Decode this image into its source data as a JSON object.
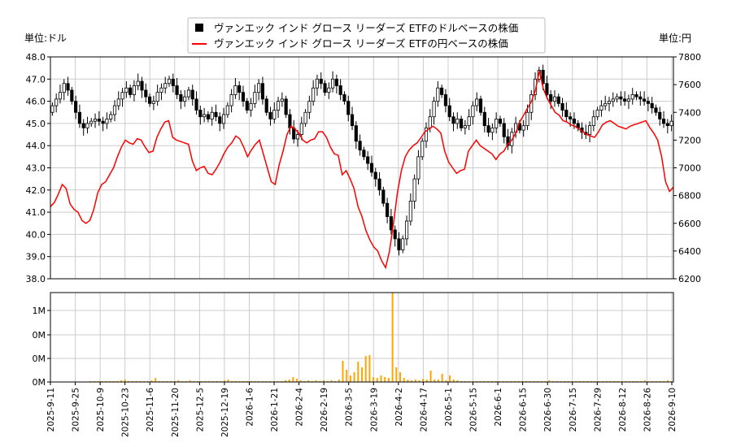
{
  "chart_data": [
    {
      "type": "candlestick",
      "legend": {
        "placement": "top-center",
        "entries": [
          {
            "label": "ヴァンエック インド グロース リーダーズ ETFのドルベースの株価",
            "color": "#000000",
            "marker": "square"
          },
          {
            "label": "ヴァンエック インド グロース リーダーズ ETFの円ベースの株価",
            "color": "#ff0000",
            "marker": "line"
          }
        ]
      },
      "left_axis": {
        "unit_label": "単位:ドル",
        "ylim": [
          38.0,
          48.0
        ],
        "ticks": [
          "38.0",
          "39.0",
          "40.0",
          "41.0",
          "42.0",
          "43.0",
          "44.0",
          "45.0",
          "46.0",
          "47.0",
          "48.0"
        ]
      },
      "right_axis": {
        "unit_label": "単位:円",
        "ylim": [
          6200,
          7800
        ],
        "ticks": [
          "6200",
          "6400",
          "6600",
          "6800",
          "7000",
          "7200",
          "7400",
          "7600",
          "7800"
        ]
      },
      "grid": true,
      "usd_series": {
        "name": "ヴァンエック インド グロース リーダーズ ETFのドルベースの株価",
        "color": "#000000",
        "close": [
          45.8,
          46.1,
          46.4,
          46.8,
          46.5,
          46.0,
          45.5,
          45.0,
          44.8,
          45.0,
          45.1,
          45.2,
          45.1,
          45.0,
          45.2,
          45.4,
          45.8,
          46.1,
          46.4,
          46.6,
          46.3,
          46.7,
          46.9,
          46.5,
          46.2,
          45.9,
          46.0,
          46.4,
          46.6,
          46.8,
          47.0,
          46.7,
          46.3,
          46.0,
          46.2,
          46.5,
          46.1,
          45.6,
          45.3,
          45.4,
          45.2,
          45.5,
          45.3,
          45.0,
          45.4,
          45.8,
          46.3,
          46.7,
          46.4,
          46.0,
          45.6,
          45.9,
          46.4,
          46.8,
          46.1,
          45.5,
          45.2,
          45.6,
          46.0,
          46.1,
          45.4,
          44.8,
          44.3,
          44.5,
          45.0,
          45.5,
          46.0,
          46.6,
          47.0,
          46.8,
          46.4,
          46.6,
          47.0,
          46.7,
          46.3,
          46.0,
          45.4,
          44.9,
          44.2,
          43.8,
          43.5,
          43.2,
          42.8,
          42.5,
          42.0,
          41.4,
          40.8,
          40.2,
          39.8,
          39.3,
          39.8,
          40.6,
          41.5,
          42.5,
          43.5,
          44.2,
          44.8,
          45.3,
          46.0,
          46.6,
          46.3,
          45.8,
          45.3,
          45.0,
          45.2,
          44.8,
          44.9,
          45.3,
          45.8,
          46.1,
          45.5,
          44.9,
          44.6,
          44.8,
          45.2,
          45.0,
          44.4,
          44.0,
          44.6,
          45.0,
          44.7,
          44.9,
          45.5,
          46.3,
          47.0,
          47.4,
          46.8,
          46.3,
          46.0,
          46.2,
          45.9,
          45.6,
          45.3,
          45.2,
          45.0,
          44.8,
          44.6,
          44.5,
          44.9,
          45.3,
          45.6,
          45.8,
          45.9,
          46.0,
          46.1,
          46.2,
          46.1,
          46.0,
          46.1,
          46.3,
          46.2,
          46.1,
          46.0,
          45.9,
          45.7,
          45.5,
          45.2,
          45.0,
          44.9,
          45.1
        ]
      },
      "jpy_series": {
        "name": "ヴァンエック インド グロース リーダーズ ETFの円ベースの株価",
        "color": "#ff0000",
        "values": [
          6720,
          6750,
          6810,
          6880,
          6850,
          6740,
          6700,
          6680,
          6620,
          6600,
          6620,
          6700,
          6820,
          6880,
          6900,
          6950,
          7000,
          7080,
          7150,
          7200,
          7180,
          7170,
          7210,
          7200,
          7150,
          7110,
          7120,
          7220,
          7280,
          7330,
          7340,
          7220,
          7200,
          7190,
          7180,
          7170,
          7050,
          6980,
          7000,
          7010,
          6960,
          6950,
          6990,
          7040,
          7100,
          7150,
          7180,
          7230,
          7210,
          7150,
          7080,
          7130,
          7170,
          7200,
          7100,
          7000,
          6900,
          6880,
          7020,
          7120,
          7240,
          7300,
          7280,
          7250,
          7200,
          7180,
          7200,
          7210,
          7260,
          7260,
          7220,
          7150,
          7100,
          7090,
          6950,
          6980,
          6920,
          6850,
          6720,
          6650,
          6550,
          6480,
          6430,
          6400,
          6330,
          6280,
          6400,
          6600,
          6820,
          6980,
          7080,
          7130,
          7160,
          7180,
          7220,
          7260,
          7280,
          7300,
          7280,
          7250,
          7120,
          7040,
          7000,
          6960,
          6980,
          6990,
          7120,
          7160,
          7200,
          7160,
          7140,
          7120,
          7100,
          7060,
          7100,
          7120,
          7170,
          7200,
          7250,
          7330,
          7380,
          7430,
          7480,
          7560,
          7700,
          7570,
          7500,
          7450,
          7400,
          7380,
          7340,
          7330,
          7310,
          7300,
          7280,
          7260,
          7240,
          7230,
          7220,
          7260,
          7310,
          7330,
          7340,
          7320,
          7300,
          7290,
          7280,
          7300,
          7310,
          7320,
          7330,
          7340,
          7290,
          7250,
          7200,
          7080,
          6900,
          6830,
          6860
        ]
      },
      "volume": {
        "color": "#ffa500",
        "ytick_labels": [
          "0M",
          "0M",
          "0M",
          "1M"
        ],
        "values": [
          0,
          0,
          0,
          0,
          0,
          0,
          0,
          0,
          0,
          0,
          0.01,
          0.01,
          0.01,
          0.01,
          0.01,
          0.01,
          0.01,
          0.01,
          0.02,
          0.03,
          0.01,
          0.01,
          0.01,
          0.01,
          0.01,
          0.01,
          0.02,
          0.05,
          0.01,
          0.01,
          0.01,
          0.01,
          0.01,
          0.02,
          0.01,
          0.01,
          0.02,
          0.01,
          0.01,
          0.01,
          0.01,
          0.01,
          0.01,
          0.01,
          0.01,
          0.02,
          0.03,
          0.01,
          0.01,
          0.01,
          0.01,
          0.01,
          0.01,
          0.01,
          0.01,
          0.01,
          0.01,
          0.01,
          0.01,
          0.01,
          0.01,
          0.02,
          0.03,
          0.06,
          0.04,
          0.02,
          0.01,
          0.02,
          0.01,
          0.02,
          0.01,
          0.02,
          0.01,
          0.02,
          0.01,
          0.03,
          0.26,
          0.15,
          0.08,
          0.12,
          0.25,
          0.18,
          0.32,
          0.33,
          0.06,
          0.05,
          0.08,
          0.06,
          0.05,
          1.1,
          0.18,
          0.12,
          0.05,
          0.03,
          0.02,
          0.03,
          0.02,
          0.04,
          0.03,
          0.14,
          0.03,
          0.03,
          0.1,
          0.02,
          0.08,
          0.03,
          0.02,
          0.01,
          0.01,
          0.01,
          0.01,
          0.01,
          0.01,
          0.01,
          0.01,
          0.01,
          0.01,
          0.01,
          0.01,
          0.01,
          0.01,
          0.01,
          0.01,
          0.01,
          0.01,
          0.01,
          0.01,
          0.01,
          0.01,
          0.01,
          0.02,
          0.01,
          0.01,
          0.01,
          0.01,
          0.01,
          0.01,
          0.01,
          0.01,
          0.01,
          0.01,
          0.01,
          0.01,
          0.01,
          0.01,
          0.01,
          0.01,
          0.01,
          0.01,
          0.01,
          0.01,
          0.01,
          0.01,
          0.01,
          0.01,
          0.02,
          0.01,
          0.01,
          0.01,
          0.01,
          0.01,
          0.02,
          0.01
        ]
      },
      "x_tick_labels": [
        "2025-9-11",
        "2025-9-25",
        "2025-10-9",
        "2025-10-23",
        "2025-11-6",
        "2025-11-20",
        "2025-12-5",
        "2025-12-19",
        "2026-1-6",
        "2026-1-21",
        "2026-2-4",
        "2026-2-19",
        "2026-3-5",
        "2026-3-19",
        "2026-4-2",
        "2026-4-17",
        "2026-5-1",
        "2026-5-15",
        "2026-6-1",
        "2026-6-15",
        "2026-6-30",
        "2026-7-15",
        "2026-7-29",
        "2026-8-12",
        "2026-8-26",
        "2026-9-10"
      ]
    }
  ]
}
